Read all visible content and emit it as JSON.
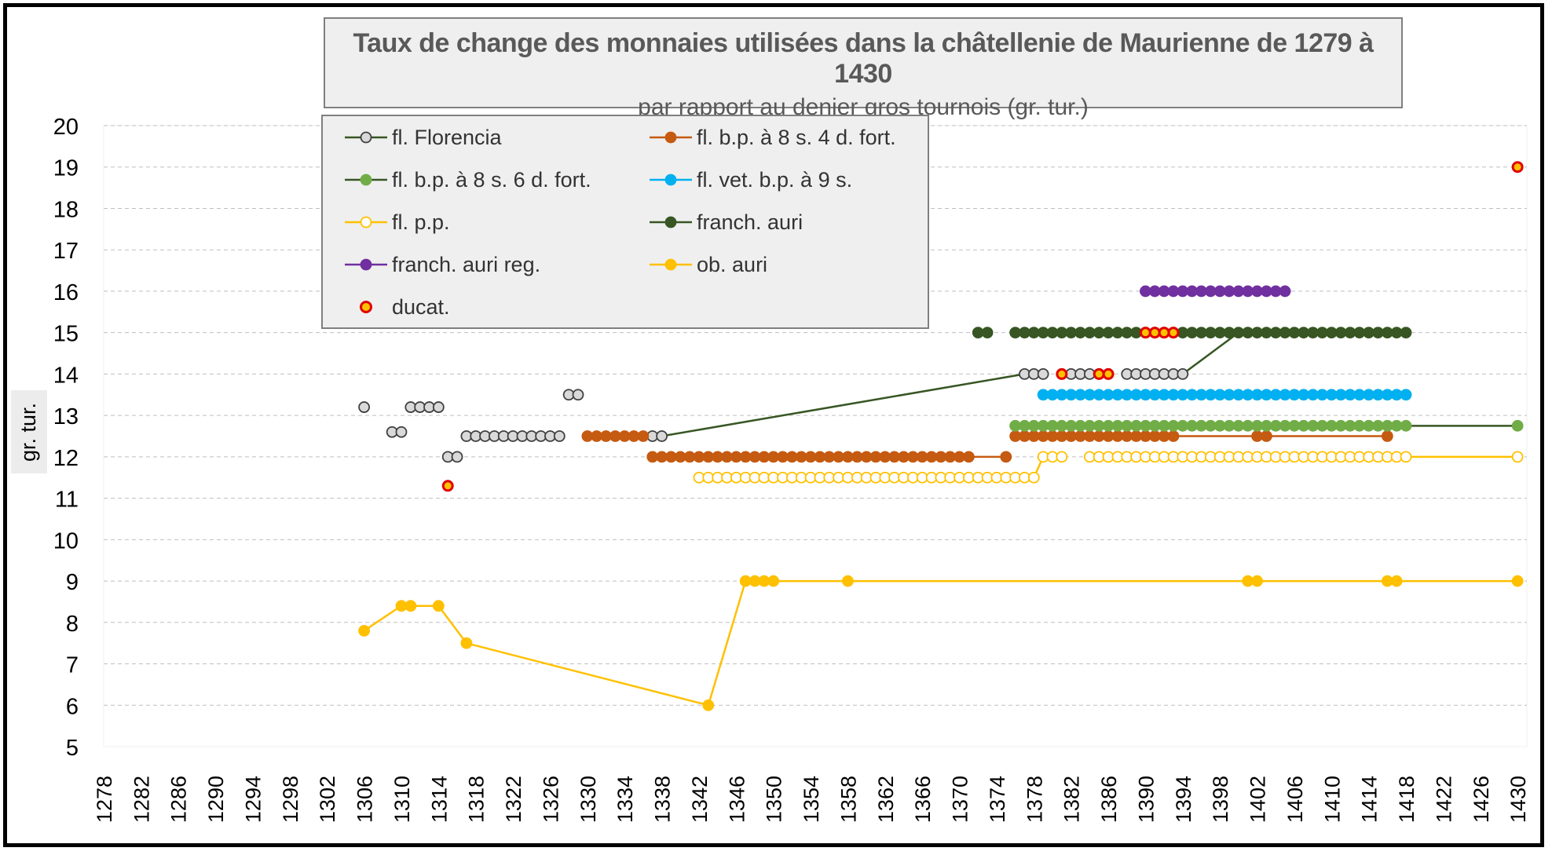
{
  "chart_data": {
    "type": "line",
    "title": "Taux de change des monnaies utilisées dans la châtellenie de Maurienne de 1279 à 1430",
    "subtitle": "par rapport au denier gros tournois (gr. tur.)",
    "xlabel": "",
    "ylabel": "gr. tur.",
    "xlim": [
      1278,
      1431
    ],
    "ylim": [
      5,
      20
    ],
    "xticks": [
      1278,
      1282,
      1286,
      1290,
      1294,
      1298,
      1302,
      1306,
      1310,
      1314,
      1318,
      1322,
      1326,
      1330,
      1334,
      1338,
      1342,
      1346,
      1350,
      1354,
      1358,
      1362,
      1366,
      1370,
      1374,
      1378,
      1382,
      1386,
      1390,
      1394,
      1398,
      1402,
      1406,
      1410,
      1414,
      1418,
      1422,
      1426,
      1430
    ],
    "yticks": [
      5,
      6,
      7,
      8,
      9,
      10,
      11,
      12,
      13,
      14,
      15,
      16,
      17,
      18,
      19,
      20
    ],
    "grid": true,
    "legend_position": "top-left",
    "series": [
      {
        "name": "fl. Florencia",
        "line_color": "#375623",
        "marker_fill": "#d9d9d9",
        "marker_stroke": "#404040",
        "segments": [
          {
            "from": 1306,
            "to": 1306,
            "y": 13.2
          },
          {
            "from": 1309,
            "to": 1310,
            "y": 12.6
          },
          {
            "from": 1311,
            "to": 1314,
            "y": 13.2
          },
          {
            "from": 1315,
            "to": 1316,
            "y": 12.0
          },
          {
            "from": 1317,
            "to": 1327,
            "y": 12.5
          },
          {
            "from": 1328,
            "to": 1329,
            "y": 13.5
          },
          {
            "from": 1337,
            "to": 1338,
            "y": 12.5
          },
          {
            "from": 1377,
            "to": 1379,
            "y": 14.0
          },
          {
            "from": 1382,
            "to": 1385,
            "y": 14.0
          },
          {
            "from": 1388,
            "to": 1394,
            "y": 14.0
          }
        ],
        "line_extra": [
          [
            1338,
            12.5
          ],
          [
            1377,
            14.0
          ]
        ],
        "tail": [
          [
            1394,
            14.0
          ],
          [
            1400,
            15.0
          ]
        ]
      },
      {
        "name": "fl. b.p. à 8 s. 4 d. fort.",
        "line_color": "#c55a11",
        "marker_fill": "#c55a11",
        "marker_stroke": "#c55a11",
        "segments": [
          {
            "from": 1330,
            "to": 1336,
            "y": 12.5
          },
          {
            "from": 1337,
            "to": 1371,
            "y": 12.0
          },
          {
            "from": 1375,
            "to": 1375,
            "y": 12.0
          },
          {
            "from": 1376,
            "to": 1393,
            "y": 12.5
          },
          {
            "from": 1402,
            "to": 1403,
            "y": 12.5
          },
          {
            "from": 1416,
            "to": 1416,
            "y": 12.5
          }
        ],
        "line_extra": [
          [
            1371,
            12.0
          ],
          [
            1375,
            12.0
          ]
        ],
        "tail": [
          [
            1393,
            12.5
          ],
          [
            1416,
            12.5
          ]
        ]
      },
      {
        "name": "fl. b.p. à 8 s. 6 d. fort.",
        "line_color": "#375623",
        "marker_fill": "#70ad47",
        "marker_stroke": "#70ad47",
        "segments": [
          {
            "from": 1376,
            "to": 1418,
            "y": 12.75
          },
          {
            "from": 1430,
            "to": 1430,
            "y": 12.75
          }
        ],
        "tail": [
          [
            1418,
            12.75
          ],
          [
            1430,
            12.75
          ]
        ]
      },
      {
        "name": "fl. vet. b.p. à 9 s.",
        "line_color": "#00b0f0",
        "marker_fill": "#00b0f0",
        "marker_stroke": "#00b0f0",
        "segments": [
          {
            "from": 1379,
            "to": 1418,
            "y": 13.5
          }
        ]
      },
      {
        "name": "fl. p.p.",
        "line_color": "#ffc000",
        "marker_fill": "#ffffff",
        "marker_stroke": "#ffc000",
        "segments": [
          {
            "from": 1342,
            "to": 1378,
            "y": 11.5
          },
          {
            "from": 1379,
            "to": 1381,
            "y": 12.0
          },
          {
            "from": 1384,
            "to": 1418,
            "y": 12.0
          },
          {
            "from": 1430,
            "to": 1430,
            "y": 12.0
          }
        ],
        "line_extra": [
          [
            1378,
            11.5
          ],
          [
            1379,
            12.0
          ]
        ],
        "tail": [
          [
            1418,
            12.0
          ],
          [
            1430,
            12.0
          ]
        ]
      },
      {
        "name": "franch. auri",
        "line_color": "#375623",
        "marker_fill": "#375623",
        "marker_stroke": "#375623",
        "segments": [
          {
            "from": 1372,
            "to": 1373,
            "y": 15.0
          },
          {
            "from": 1376,
            "to": 1418,
            "y": 15.0
          }
        ]
      },
      {
        "name": "franch. auri reg.",
        "line_color": "#7030a0",
        "marker_fill": "#7030a0",
        "marker_stroke": "#7030a0",
        "segments": [
          {
            "from": 1390,
            "to": 1405,
            "y": 16.0
          }
        ]
      },
      {
        "name": "ob. auri",
        "line_color": "#ffc000",
        "marker_fill": "#ffc000",
        "marker_stroke": "#ffc000",
        "points": [
          [
            1306,
            7.8
          ],
          [
            1310,
            8.4
          ],
          [
            1311,
            8.4
          ],
          [
            1314,
            8.4
          ],
          [
            1317,
            7.5
          ],
          [
            1343,
            6.0
          ],
          [
            1347,
            9.0
          ],
          [
            1348,
            9.0
          ],
          [
            1349,
            9.0
          ],
          [
            1350,
            9.0
          ],
          [
            1358,
            9.0
          ],
          [
            1401,
            9.0
          ],
          [
            1402,
            9.0
          ],
          [
            1416,
            9.0
          ],
          [
            1417,
            9.0
          ],
          [
            1430,
            9.0
          ]
        ],
        "marker_at": [
          [
            1306,
            7.8
          ],
          [
            1310,
            8.4
          ],
          [
            1311,
            8.4
          ],
          [
            1314,
            8.4
          ],
          [
            1317,
            7.5
          ],
          [
            1343,
            6.0
          ],
          [
            1347,
            9.0
          ],
          [
            1348,
            9.0
          ],
          [
            1349,
            9.0
          ],
          [
            1350,
            9.0
          ],
          [
            1358,
            9.0
          ],
          [
            1401,
            9.0
          ],
          [
            1402,
            9.0
          ],
          [
            1416,
            9.0
          ],
          [
            1417,
            9.0
          ],
          [
            1430,
            9.0
          ]
        ]
      },
      {
        "name": "ducat.",
        "line_color": null,
        "marker_fill": "#ffc000",
        "marker_stroke": "#e00000",
        "points": [
          [
            1315,
            11.3
          ],
          [
            1381,
            14.0
          ],
          [
            1385,
            14.0
          ],
          [
            1386,
            14.0
          ],
          [
            1390,
            15.0
          ],
          [
            1391,
            15.0
          ],
          [
            1392,
            15.0
          ],
          [
            1393,
            15.0
          ],
          [
            1430,
            19.0
          ]
        ]
      }
    ]
  },
  "legend": {
    "items": [
      {
        "label": "fl. Florencia",
        "series": 0
      },
      {
        "label": "fl. b.p. à 8 s. 4 d. fort.",
        "series": 1
      },
      {
        "label": "fl. b.p. à 8 s. 6 d. fort.",
        "series": 2
      },
      {
        "label": "fl. vet. b.p. à 9 s.",
        "series": 3
      },
      {
        "label": "fl. p.p.",
        "series": 4
      },
      {
        "label": "franch. auri",
        "series": 5
      },
      {
        "label": "franch. auri reg.",
        "series": 6
      },
      {
        "label": "ob. auri",
        "series": 7
      },
      {
        "label": "ducat.",
        "series": 8
      }
    ]
  },
  "colors": {
    "grid": "#bfbfbf",
    "axis_text": "#000000",
    "title_text": "#595959",
    "panel_bg": "#efefef"
  }
}
